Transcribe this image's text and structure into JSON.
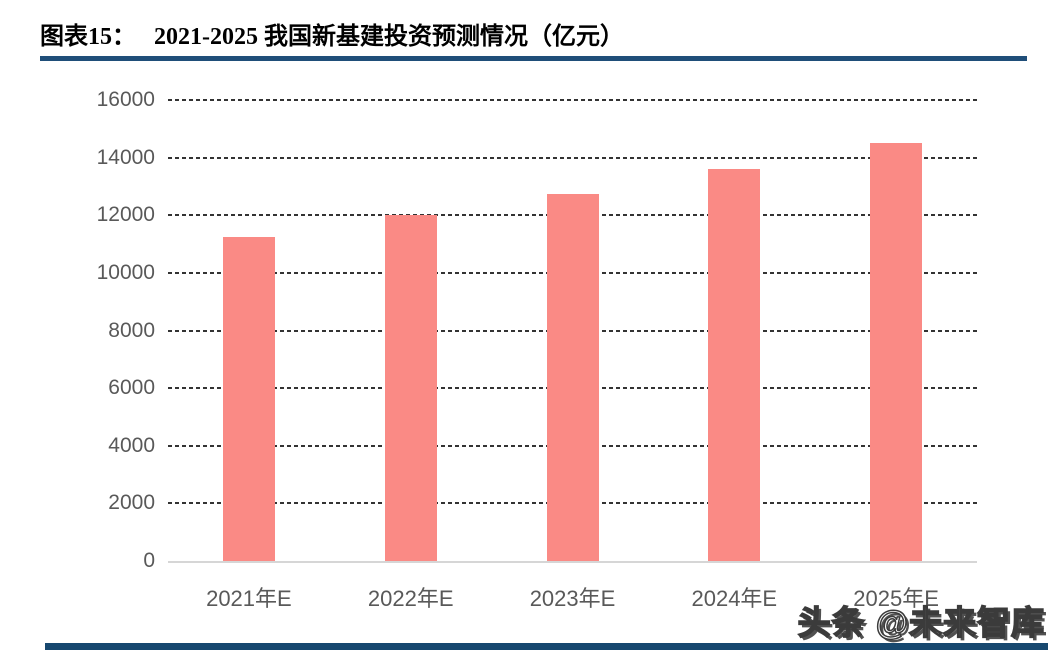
{
  "header": {
    "label": "图表15：",
    "title": "2021-2025 我国新基建投资预测情况（亿元）"
  },
  "watermark": {
    "text": "头条 @未来智库"
  },
  "colors": {
    "bar": "#FA8A85",
    "header_rule": "#1F4E79",
    "footer_bar": "#17486F",
    "grid": "#333333",
    "axis_line": "#D6D6D6",
    "tick_text": "#595959",
    "title_text": "#000000"
  },
  "chart_data": {
    "type": "bar",
    "title": "图表15： 2021-2025 我国新基建投资预测情况（亿元）",
    "categories": [
      "2021年E",
      "2022年E",
      "2023年E",
      "2024年E",
      "2025年E"
    ],
    "values": [
      11250,
      12000,
      12750,
      13600,
      14500
    ],
    "xlabel": "",
    "ylabel": "",
    "ylim": [
      0,
      16000
    ],
    "ytick_step": 2000,
    "ytick_labels": [
      "0",
      "2000",
      "4000",
      "6000",
      "8000",
      "10000",
      "12000",
      "14000",
      "16000"
    ],
    "grid": "horizontal-dashed",
    "legend": "none",
    "bar_color": "#FA8A85"
  }
}
